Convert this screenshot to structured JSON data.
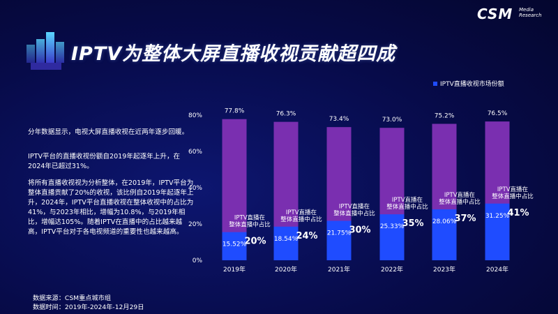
{
  "title": "IPTV为整体大屏直播收视贡献超四成",
  "brand": {
    "name": "CSM",
    "sub_line1": "Media",
    "sub_line2": "Research"
  },
  "paragraphs": [
    "分年数据显示，电视大屏直播收视在近两年逐步回暖。",
    "IPTV平台的直播收视份额自2019年起逐年上升，在2024年已超过31%。",
    "将所有直播收视视为分析整体，在2019年，IPTV平台为整体直播贡献了20%的收视，该比例自2019年起逐年上升，2024年，IPTV平台直播收视在整体收视中的占比为41%，与2023年相比，增幅为10.8%，与2019年相比，增幅达105%。随着IPTV在直播中的占比越来越高，IPTV平台对于各电视频道的重要性也越来越高。"
  ],
  "footer": {
    "source": "数据来源：CSM重点城市组",
    "time": "数据时间：2019年-2024年-12月29日"
  },
  "legend": {
    "label": "IPTV直播收视市场份额",
    "color": "#1f4cff"
  },
  "colors": {
    "total_bar": "#7a2fb0",
    "iptv_bar": "#1f4cff"
  },
  "chart_data": {
    "type": "bar",
    "categories": [
      "2019年",
      "2020年",
      "2021年",
      "2022年",
      "2023年",
      "2024年"
    ],
    "series": [
      {
        "name": "",
        "values": [
          77.8,
          76.3,
          73.4,
          73.0,
          75.2,
          76.5
        ],
        "labels": [
          "77.8%",
          "76.3%",
          "73.4%",
          "73.0%",
          "75.2%",
          "76.5%"
        ]
      },
      {
        "name": "IPTV直播收视市场份额",
        "values": [
          15.52,
          18.54,
          21.75,
          25.33,
          28.06,
          31.25
        ],
        "labels": [
          "15.52%",
          "18.54%",
          "21.75%",
          "25.33%",
          "28.06%",
          "31.25%"
        ]
      }
    ],
    "ratio_caption_line1": "IPTV直播在",
    "ratio_caption_line2": "整体直播中占比",
    "ratios": [
      "20%",
      "24%",
      "30%",
      "35%",
      "37%",
      "41%"
    ],
    "yticks": [
      "0%",
      "20%",
      "40%",
      "60%",
      "80%"
    ],
    "ylim": [
      0,
      80
    ]
  }
}
